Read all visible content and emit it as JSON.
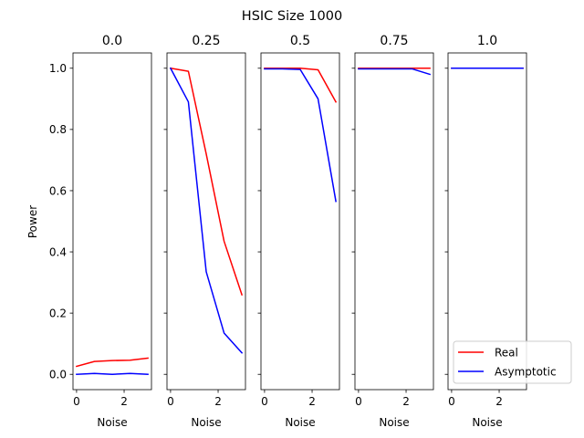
{
  "figure_title": "HSIC Size 1000",
  "chart_data": {
    "type": "line",
    "title": "HSIC Size 1000",
    "ylabel": "Power",
    "xlabel": "Noise",
    "ylim": [
      -0.05,
      1.05
    ],
    "xlim": [
      -0.15,
      3.15
    ],
    "x": [
      0,
      0.75,
      1.5,
      2.25,
      3.0
    ],
    "xticks": [
      0,
      2
    ],
    "xtick_labels": [
      "0",
      "2"
    ],
    "yticks": [
      0.0,
      0.2,
      0.4,
      0.6,
      0.8,
      1.0
    ],
    "ytick_labels": [
      "0.0",
      "0.2",
      "0.4",
      "0.6",
      "0.8",
      "1.0"
    ],
    "shared_y": true,
    "grid": false,
    "legend_position": "lower-right",
    "panels": [
      {
        "title": "0.0",
        "series": [
          {
            "name": "Real",
            "color": "#ff0000",
            "values": [
              0.026,
              0.042,
              0.045,
              0.046,
              0.053
            ]
          },
          {
            "name": "Asymptotic",
            "color": "#0000ff",
            "values": [
              0.0,
              0.003,
              0.0,
              0.003,
              0.0
            ]
          }
        ]
      },
      {
        "title": "0.25",
        "series": [
          {
            "name": "Real",
            "color": "#ff0000",
            "values": [
              1.0,
              0.99,
              0.72,
              0.435,
              0.26
            ]
          },
          {
            "name": "Asymptotic",
            "color": "#0000ff",
            "values": [
              1.0,
              0.89,
              0.335,
              0.135,
              0.07
            ]
          }
        ]
      },
      {
        "title": "0.5",
        "series": [
          {
            "name": "Real",
            "color": "#ff0000",
            "values": [
              1.0,
              1.0,
              1.0,
              0.995,
              0.89
            ]
          },
          {
            "name": "Asymptotic",
            "color": "#0000ff",
            "values": [
              0.998,
              0.998,
              0.996,
              0.9,
              0.565
            ]
          }
        ]
      },
      {
        "title": "0.75",
        "series": [
          {
            "name": "Real",
            "color": "#ff0000",
            "values": [
              1.0,
              1.0,
              1.0,
              1.0,
              1.0
            ]
          },
          {
            "name": "Asymptotic",
            "color": "#0000ff",
            "values": [
              0.998,
              0.998,
              0.998,
              0.998,
              0.98
            ]
          }
        ]
      },
      {
        "title": "1.0",
        "series": [
          {
            "name": "Real",
            "color": "#ff0000",
            "values": [
              1.0,
              1.0,
              1.0,
              1.0,
              1.0
            ]
          },
          {
            "name": "Asymptotic",
            "color": "#0000ff",
            "values": [
              1.0,
              1.0,
              1.0,
              1.0,
              1.0
            ]
          }
        ]
      }
    ],
    "legend": [
      {
        "label": "Real",
        "color": "#ff0000"
      },
      {
        "label": "Asymptotic",
        "color": "#0000ff"
      }
    ]
  }
}
